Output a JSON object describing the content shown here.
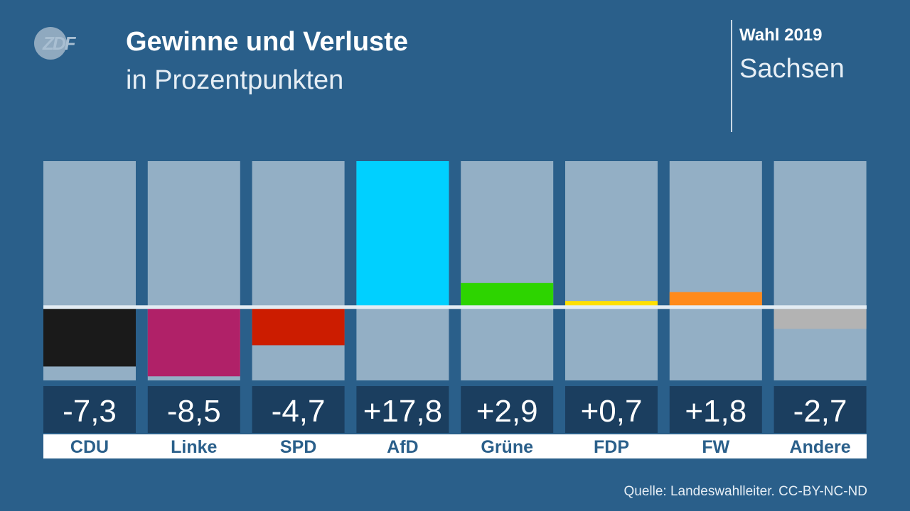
{
  "header": {
    "logo_text": "ZDF",
    "title": "Gewinne und Verluste",
    "subtitle": "in Prozentpunkten",
    "election": "Wahl 2019",
    "region": "Sachsen"
  },
  "footer": {
    "source": "Quelle: Landeswahlleiter. CC-BY-NC-ND"
  },
  "colors": {
    "background": "#2a5f8a",
    "bar_track": "#93afc5",
    "value_box": "#1b3e5f",
    "label_box": "#ffffff",
    "label_text": "#2a5f8a",
    "zero_line": "#e3ecf3"
  },
  "chart_data": {
    "type": "bar",
    "categories": [
      "CDU",
      "Linke",
      "SPD",
      "AfD",
      "Grüne",
      "FDP",
      "FW",
      "Andere"
    ],
    "values": [
      -7.3,
      -8.5,
      -4.7,
      17.8,
      2.9,
      0.7,
      1.8,
      -2.7
    ],
    "value_labels": [
      "-7,3",
      "-8,5",
      "-4,7",
      "+17,8",
      "+2,9",
      "+0,7",
      "+1,8",
      "-2,7"
    ],
    "colors": [
      "#1a1a1a",
      "#b02168",
      "#cc1c00",
      "#00d0ff",
      "#2dd400",
      "#ffe000",
      "#ff8a1a",
      "#b3b3b3"
    ],
    "ylim": [
      -9,
      17.8
    ],
    "title": "",
    "xlabel": "",
    "ylabel": ""
  }
}
